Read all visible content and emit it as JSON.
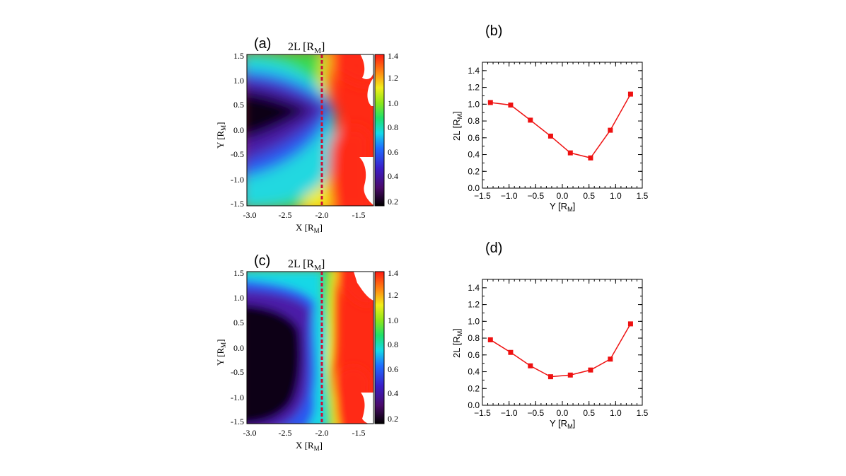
{
  "panels": [
    {
      "id": "a",
      "label": "(a)",
      "title_main": "2L [R",
      "title_sub": "M",
      "title_close": "]",
      "xlabel_main": "X [R",
      "xlabel_sub": "M",
      "xlabel_close": "]",
      "ylabel_main": "Y [R",
      "ylabel_sub": "M",
      "ylabel_close": "]",
      "xticks": [
        "-3.0",
        "-2.5",
        "-2.0",
        "-1.5"
      ],
      "yticks": [
        "1.5",
        "1.0",
        "0.5",
        "0.0",
        "-0.5",
        "-1.0",
        "-1.5"
      ],
      "colorbar_ticks": [
        "1.4",
        "1.2",
        "1.0",
        "0.8",
        "0.6",
        "0.4",
        "0.2"
      ]
    },
    {
      "id": "c",
      "label": "(c)",
      "title_main": "2L [R",
      "title_sub": "M",
      "title_close": "]",
      "xlabel_main": "X [R",
      "xlabel_sub": "M",
      "xlabel_close": "]",
      "ylabel_main": "Y [R",
      "ylabel_sub": "M",
      "ylabel_close": "]",
      "xticks": [
        "-3.0",
        "-2.5",
        "-2.0",
        "-1.5"
      ],
      "yticks": [
        "1.5",
        "1.0",
        "0.5",
        "0.0",
        "-0.5",
        "-1.0",
        "-1.5"
      ],
      "colorbar_ticks": [
        "1.4",
        "1.2",
        "1.0",
        "0.8",
        "0.6",
        "0.4",
        "0.2"
      ]
    }
  ],
  "chart_data": [
    {
      "panel": "(a)",
      "type": "heatmap",
      "title": "2L [RM]",
      "xlabel": "X [RM]",
      "ylabel": "Y [RM]",
      "xlim": [
        -3.1,
        -1.2
      ],
      "ylim": [
        -1.5,
        1.5
      ],
      "colorbar_range": [
        0.15,
        1.45
      ],
      "cut_line_x": -2.0
    },
    {
      "panel": "(b)",
      "type": "line",
      "label": "(b)",
      "xlabel": "Y [RM]",
      "ylabel": "2L [RM]",
      "xlim": [
        -1.5,
        1.5
      ],
      "ylim": [
        0.0,
        1.5
      ],
      "xticks": [
        "-1.5",
        "-1.0",
        "-0.5",
        "0.0",
        "0.5",
        "1.0",
        "1.5"
      ],
      "yticks": [
        "0.0",
        "0.2",
        "0.4",
        "0.6",
        "0.8",
        "1.0",
        "1.2",
        "1.4"
      ],
      "color": "#ee1111",
      "x": [
        -1.35,
        -0.97,
        -0.6,
        -0.22,
        0.15,
        0.53,
        0.9,
        1.28
      ],
      "y": [
        1.02,
        0.99,
        0.81,
        0.62,
        0.42,
        0.36,
        0.69,
        1.12
      ]
    },
    {
      "panel": "(c)",
      "type": "heatmap",
      "title": "2L [RM]",
      "xlabel": "X [RM]",
      "ylabel": "Y [RM]",
      "xlim": [
        -3.1,
        -1.2
      ],
      "ylim": [
        -1.5,
        1.5
      ],
      "colorbar_range": [
        0.15,
        1.45
      ],
      "cut_line_x": -2.0
    },
    {
      "panel": "(d)",
      "type": "line",
      "label": "(d)",
      "xlabel": "Y [RM]",
      "ylabel": "2L [RM]",
      "xlim": [
        -1.5,
        1.5
      ],
      "ylim": [
        0.0,
        1.5
      ],
      "xticks": [
        "-1.5",
        "-1.0",
        "-0.5",
        "0.0",
        "0.5",
        "1.0",
        "1.5"
      ],
      "yticks": [
        "0.0",
        "0.2",
        "0.4",
        "0.6",
        "0.8",
        "1.0",
        "1.2",
        "1.4"
      ],
      "color": "#ee1111",
      "x": [
        -1.35,
        -0.97,
        -0.6,
        -0.22,
        0.15,
        0.53,
        0.9,
        1.28
      ],
      "y": [
        0.78,
        0.63,
        0.47,
        0.34,
        0.36,
        0.42,
        0.55,
        0.97
      ]
    }
  ],
  "lines": [
    {
      "label": "(b)",
      "ylabel_main": "2L [R",
      "ylabel_sub": "M",
      "ylabel_close": "]",
      "xlabel_main": "Y [R",
      "xlabel_sub": "M",
      "xlabel_close": "]"
    },
    {
      "label": "(d)",
      "ylabel_main": "2L [R",
      "ylabel_sub": "M",
      "ylabel_close": "]",
      "xlabel_main": "Y [R",
      "xlabel_sub": "M",
      "xlabel_close": "]"
    }
  ],
  "colors": {
    "line": "#ee1111",
    "cut_line": "#cc1133"
  }
}
